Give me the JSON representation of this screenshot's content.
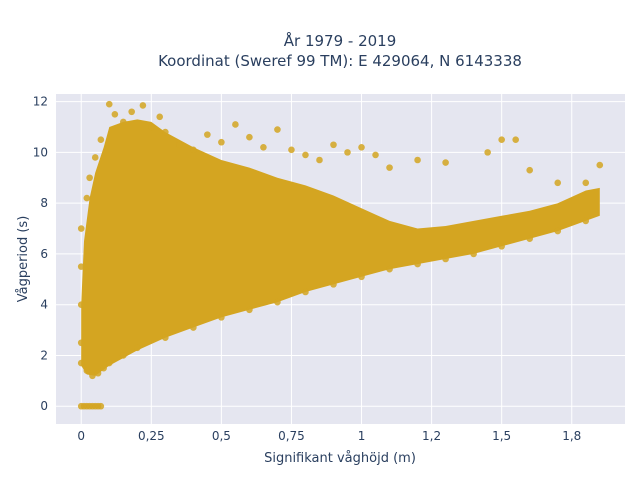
{
  "chart_data": {
    "type": "scatter",
    "title_lines": [
      "År 1979 - 2019",
      "Koordinat (Sweref 99 TM): E 429064, N 6143338"
    ],
    "xlabel": "Signifikant våghöjd (m)",
    "ylabel": "Vågperiod (s)",
    "xlim": [
      -0.09,
      1.94
    ],
    "ylim": [
      -0.7,
      12.3
    ],
    "x_ticks": [
      0,
      0.25,
      0.5,
      0.75,
      1,
      1.25,
      1.5,
      1.75
    ],
    "x_tick_labels": [
      "0",
      "0,25",
      "0,5",
      "0,75",
      "1",
      "1,2",
      "1,5",
      "1,8"
    ],
    "y_ticks": [
      0,
      2,
      4,
      6,
      8,
      10,
      12
    ],
    "y_tick_labels": [
      "0",
      "2",
      "4",
      "6",
      "8",
      "10",
      "12"
    ],
    "grid": true,
    "marker_color": "#D4A521",
    "plot_background": "#E5E6F0",
    "series": [
      {
        "values": [
          {
            "x": 0.0,
            "y": 0
          },
          {
            "x": 0.01,
            "y": 0
          },
          {
            "x": 0.02,
            "y": 0
          },
          {
            "x": 0.03,
            "y": 0
          },
          {
            "x": 0.04,
            "y": 0
          },
          {
            "x": 0.05,
            "y": 0
          },
          {
            "x": 0.06,
            "y": 0
          },
          {
            "x": 0.07,
            "y": 0
          },
          {
            "x": 0.0,
            "y": 1.7
          },
          {
            "x": 0.02,
            "y": 1.4
          },
          {
            "x": 0.04,
            "y": 1.2
          },
          {
            "x": 0.06,
            "y": 1.3
          },
          {
            "x": 0.08,
            "y": 1.5
          },
          {
            "x": 0.1,
            "y": 1.7
          },
          {
            "x": 0.15,
            "y": 2.0
          },
          {
            "x": 0.2,
            "y": 2.3
          },
          {
            "x": 0.3,
            "y": 2.7
          },
          {
            "x": 0.4,
            "y": 3.1
          },
          {
            "x": 0.5,
            "y": 3.5
          },
          {
            "x": 0.6,
            "y": 3.8
          },
          {
            "x": 0.7,
            "y": 4.1
          },
          {
            "x": 0.8,
            "y": 4.5
          },
          {
            "x": 0.9,
            "y": 4.8
          },
          {
            "x": 1.0,
            "y": 5.1
          },
          {
            "x": 1.1,
            "y": 5.4
          },
          {
            "x": 1.2,
            "y": 5.6
          },
          {
            "x": 1.3,
            "y": 5.8
          },
          {
            "x": 1.4,
            "y": 6.0
          },
          {
            "x": 1.5,
            "y": 6.3
          },
          {
            "x": 1.6,
            "y": 6.6
          },
          {
            "x": 1.7,
            "y": 6.9
          },
          {
            "x": 1.8,
            "y": 7.3
          },
          {
            "x": 0.0,
            "y": 2.5
          },
          {
            "x": 0.0,
            "y": 4.0
          },
          {
            "x": 0.0,
            "y": 5.5
          },
          {
            "x": 0.0,
            "y": 7.0
          },
          {
            "x": 0.02,
            "y": 8.2
          },
          {
            "x": 0.03,
            "y": 9.0
          },
          {
            "x": 0.05,
            "y": 9.8
          },
          {
            "x": 0.07,
            "y": 10.5
          },
          {
            "x": 0.1,
            "y": 11.9
          },
          {
            "x": 0.12,
            "y": 11.5
          },
          {
            "x": 0.15,
            "y": 11.2
          },
          {
            "x": 0.18,
            "y": 11.6
          },
          {
            "x": 0.22,
            "y": 11.85
          },
          {
            "x": 0.25,
            "y": 11.0
          },
          {
            "x": 0.28,
            "y": 11.4
          },
          {
            "x": 0.3,
            "y": 10.8
          },
          {
            "x": 0.35,
            "y": 10.3
          },
          {
            "x": 0.4,
            "y": 10.1
          },
          {
            "x": 0.45,
            "y": 10.7
          },
          {
            "x": 0.5,
            "y": 10.4
          },
          {
            "x": 0.55,
            "y": 11.1
          },
          {
            "x": 0.6,
            "y": 10.6
          },
          {
            "x": 0.65,
            "y": 10.2
          },
          {
            "x": 0.7,
            "y": 10.9
          },
          {
            "x": 0.75,
            "y": 10.1
          },
          {
            "x": 0.8,
            "y": 9.9
          },
          {
            "x": 0.85,
            "y": 9.7
          },
          {
            "x": 0.9,
            "y": 10.3
          },
          {
            "x": 0.95,
            "y": 10.0
          },
          {
            "x": 1.0,
            "y": 10.2
          },
          {
            "x": 1.05,
            "y": 9.9
          },
          {
            "x": 1.1,
            "y": 9.4
          },
          {
            "x": 1.2,
            "y": 9.7
          },
          {
            "x": 1.3,
            "y": 9.6
          },
          {
            "x": 1.45,
            "y": 10.0
          },
          {
            "x": 1.5,
            "y": 10.5
          },
          {
            "x": 1.55,
            "y": 10.5
          },
          {
            "x": 1.6,
            "y": 9.3
          },
          {
            "x": 1.7,
            "y": 8.8
          },
          {
            "x": 1.8,
            "y": 8.8
          },
          {
            "x": 1.85,
            "y": 9.5
          }
        ]
      }
    ]
  }
}
